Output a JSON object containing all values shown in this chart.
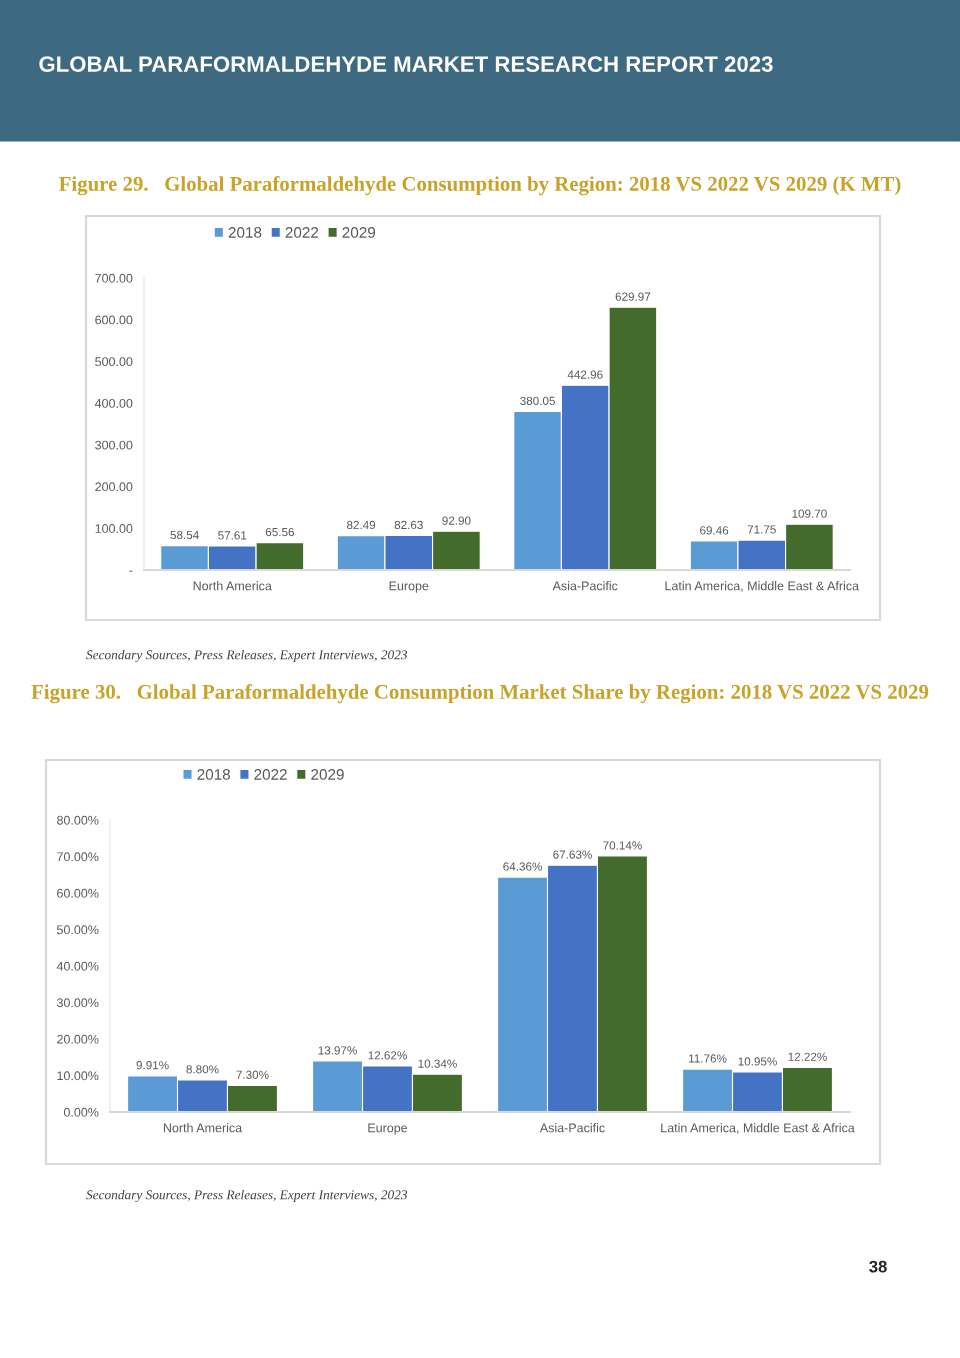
{
  "chart_data": [
    {
      "type": "bar",
      "title": "Figure 29.   Global Paraformaldehyde Consumption by Region: 2018 VS 2022 VS 2029 (K MT)",
      "categories": [
        "North America",
        "Europe",
        "Asia-Pacific",
        "Latin America, Middle East & Africa"
      ],
      "series": [
        {
          "name": "2018",
          "color": "#5b9bd5",
          "values": [
            58.54,
            82.49,
            380.05,
            69.46
          ],
          "value_labels": [
            "58.54",
            "82.49",
            "380.05",
            "69.46"
          ]
        },
        {
          "name": "2022",
          "color": "#4472c4",
          "values": [
            57.61,
            82.63,
            442.96,
            71.75
          ],
          "value_labels": [
            "57.61",
            "82.63",
            "442.96",
            "71.75"
          ]
        },
        {
          "name": "2029",
          "color": "#426b2c",
          "values": [
            65.56,
            92.9,
            629.97,
            109.7
          ],
          "value_labels": [
            "65.56",
            "92.90",
            "629.97",
            "109.70"
          ]
        }
      ],
      "ylim": [
        0,
        700
      ],
      "yticks": [
        {
          "value": 0,
          "label": "-"
        },
        {
          "value": 100,
          "label": "100.00"
        },
        {
          "value": 200,
          "label": "200.00"
        },
        {
          "value": 300,
          "label": "300.00"
        },
        {
          "value": 400,
          "label": "400.00"
        },
        {
          "value": 500,
          "label": "500.00"
        },
        {
          "value": 600,
          "label": "600.00"
        },
        {
          "value": 700,
          "label": "700.00"
        }
      ],
      "grid": false,
      "legend": "top",
      "annotations": [
        "GLOBAL PARAFORMALDEHYDE MARKET RESEARCH REPORT 2023",
        "Secondary Sources, Press Releases, Expert Interviews, 2023"
      ]
    },
    {
      "type": "bar",
      "title": "Figure 30.   Global Paraformaldehyde Consumption Market Share by Region: 2018 VS 2022 VS 2029",
      "categories": [
        "North America",
        "Europe",
        "Asia-Pacific",
        "Latin America, Middle East & Africa"
      ],
      "series": [
        {
          "name": "2018",
          "color": "#5b9bd5",
          "values": [
            9.91,
            13.97,
            64.36,
            11.76
          ],
          "value_labels": [
            "9.91%",
            "13.97%",
            "64.36%",
            "11.76%"
          ]
        },
        {
          "name": "2022",
          "color": "#4472c4",
          "values": [
            8.8,
            12.62,
            67.63,
            10.95
          ],
          "value_labels": [
            "8.80%",
            "12.62%",
            "67.63%",
            "10.95%"
          ]
        },
        {
          "name": "2029",
          "color": "#426b2c",
          "values": [
            7.3,
            10.34,
            70.14,
            12.22
          ],
          "value_labels": [
            "7.30%",
            "10.34%",
            "70.14%",
            "12.22%"
          ]
        }
      ],
      "ylim": [
        0,
        80
      ],
      "yticks": [
        {
          "value": 0,
          "label": "0.00%"
        },
        {
          "value": 10,
          "label": "10.00%"
        },
        {
          "value": 20,
          "label": "20.00%"
        },
        {
          "value": 30,
          "label": "30.00%"
        },
        {
          "value": 40,
          "label": "40.00%"
        },
        {
          "value": 50,
          "label": "50.00%"
        },
        {
          "value": 60,
          "label": "60.00%"
        },
        {
          "value": 70,
          "label": "70.00%"
        },
        {
          "value": 80,
          "label": "80.00%"
        }
      ],
      "grid": false,
      "legend": "top",
      "annotations": [
        "Secondary Sources, Press Releases, Expert Interviews, 2023",
        "38"
      ]
    }
  ]
}
